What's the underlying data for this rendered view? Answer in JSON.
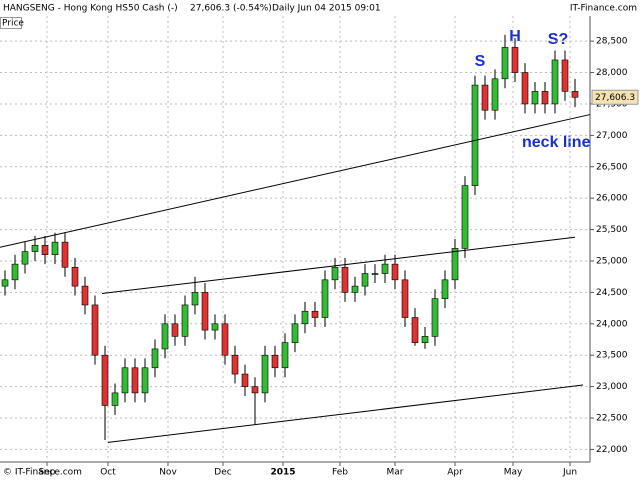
{
  "header": {
    "symbol": "HANGSENG - Hong Kong HS50 Cash (-)",
    "quote": "27,606.3 (-0.54%)",
    "period": "Daily  Jun 04 2015 09:01",
    "brand": "IT-Finance.com"
  },
  "footer": "© IT-Finance.com",
  "chart_data": {
    "type": "candlestick",
    "y_label": "Price",
    "up_color": "#33bb33",
    "down_color": "#dd3333",
    "grid": true,
    "xlim": [
      -0.5,
      58.5
    ],
    "ylim": [
      21800,
      28900
    ],
    "xticks": [
      {
        "value": 4.2,
        "label": "Sep"
      },
      {
        "value": 10.3,
        "label": "Oct"
      },
      {
        "value": 16.3,
        "label": "Nov"
      },
      {
        "value": 21.8,
        "label": "Dec"
      },
      {
        "value": 27.8,
        "label": "2015"
      },
      {
        "value": 33.5,
        "label": "Feb"
      },
      {
        "value": 39,
        "label": "Mar"
      },
      {
        "value": 45,
        "label": "Apr"
      },
      {
        "value": 50.8,
        "label": "May"
      },
      {
        "value": 56.5,
        "label": "Jun"
      }
    ],
    "yticks": [
      {
        "value": 22000,
        "label": "22,000"
      },
      {
        "value": 22500,
        "label": "22,500"
      },
      {
        "value": 23000,
        "label": "23,000"
      },
      {
        "value": 23500,
        "label": "23,500"
      },
      {
        "value": 24000,
        "label": "24,000"
      },
      {
        "value": 24500,
        "label": "24,500"
      },
      {
        "value": 25000,
        "label": "25,000"
      },
      {
        "value": 25500,
        "label": "25,500"
      },
      {
        "value": 26000,
        "label": "26,000"
      },
      {
        "value": 26500,
        "label": "26,500"
      },
      {
        "value": 27000,
        "label": "27,000"
      },
      {
        "value": 27500,
        "label": "27,500"
      },
      {
        "value": 28000,
        "label": "28,000"
      },
      {
        "value": 28500,
        "label": "28,500"
      }
    ],
    "open": [
      24600,
      24700,
      24950,
      25150,
      25250,
      25100,
      25300,
      24900,
      24600,
      24300,
      23500,
      22700,
      22900,
      23300,
      22900,
      23300,
      23600,
      24000,
      23800,
      24300,
      24500,
      23900,
      24000,
      23500,
      23200,
      23000,
      22900,
      23500,
      23300,
      23700,
      24000,
      24200,
      24100,
      24700,
      24900,
      24500,
      24600,
      24800,
      24800,
      24950,
      24700,
      24100,
      23700,
      23800,
      24400,
      24700,
      25200,
      26200,
      27800,
      27400,
      27900,
      28400,
      28000,
      27500,
      27700,
      27500,
      28200,
      27700
    ],
    "high": [
      24850,
      25100,
      25300,
      25400,
      25400,
      25450,
      25450,
      25050,
      24750,
      24450,
      23650,
      23050,
      23450,
      23450,
      23450,
      23750,
      24150,
      24150,
      24450,
      24750,
      24650,
      24150,
      24150,
      23650,
      23350,
      23150,
      23650,
      23650,
      23850,
      24150,
      24350,
      24350,
      24850,
      25050,
      25050,
      24750,
      24950,
      24950,
      25100,
      25100,
      24850,
      24250,
      23950,
      24550,
      24850,
      25350,
      26350,
      27950,
      27950,
      28050,
      28600,
      28550,
      28150,
      27850,
      27850,
      28350,
      28350,
      27900
    ],
    "low": [
      24450,
      24550,
      24800,
      25000,
      24950,
      24950,
      24750,
      24450,
      24150,
      23350,
      22150,
      22550,
      22750,
      22750,
      22750,
      23150,
      23450,
      23650,
      23650,
      24150,
      23750,
      23750,
      23350,
      23050,
      22850,
      22400,
      22750,
      23150,
      23150,
      23550,
      23850,
      23950,
      23950,
      24550,
      24350,
      24350,
      24450,
      24650,
      24650,
      24550,
      23950,
      23650,
      23600,
      23650,
      24250,
      24550,
      25050,
      26050,
      27250,
      27250,
      27750,
      27850,
      27350,
      27350,
      27350,
      27350,
      27550,
      27450
    ],
    "close": [
      24700,
      24950,
      25150,
      25250,
      25100,
      25300,
      24900,
      24600,
      24300,
      23500,
      22700,
      22900,
      23300,
      22900,
      23300,
      23600,
      24000,
      23800,
      24300,
      24500,
      23900,
      24000,
      23500,
      23200,
      23000,
      22900,
      23500,
      23300,
      23700,
      24000,
      24200,
      24100,
      24700,
      24900,
      24500,
      24600,
      24800,
      24800,
      24950,
      24700,
      24100,
      23700,
      23800,
      24400,
      24700,
      25200,
      26200,
      27800,
      27400,
      27900,
      28400,
      28000,
      27500,
      27700,
      27500,
      28200,
      27700,
      27606.3
    ],
    "last_label": "27,606.3",
    "lines": [
      {
        "x": [
          -0.5,
          58.5
        ],
        "y": [
          25218,
          27331
        ]
      },
      {
        "x": [
          9.7,
          57
        ],
        "y": [
          24482,
          25378
        ]
      },
      {
        "x": [
          10.3,
          57.8
        ],
        "y": [
          22112,
          23025
        ]
      }
    ],
    "annotations": [
      "S",
      "H",
      "S?",
      "neck line"
    ]
  }
}
